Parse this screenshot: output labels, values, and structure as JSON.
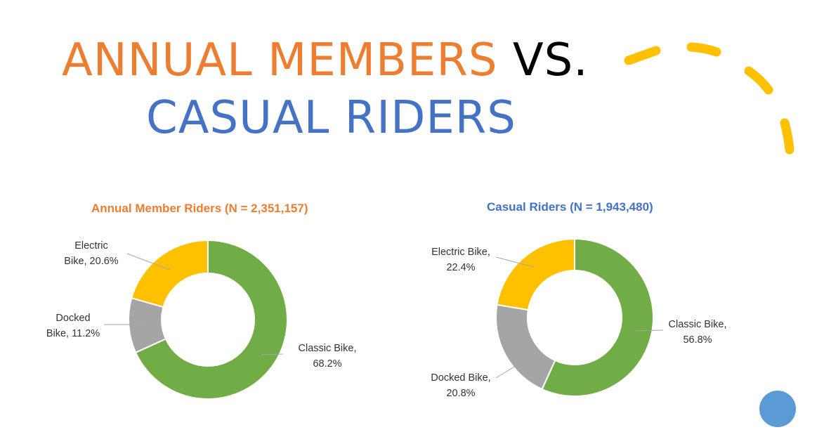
{
  "slide": {
    "title_line1_orange": "ANNUAL MEMBERS",
    "title_line1_black": "VS.",
    "title_line2": "CASUAL RIDERS",
    "colors": {
      "orange": "#ED7D31",
      "blue": "#4472C4",
      "black": "#000000",
      "accent_yellow": "#FFC000",
      "dot_blue": "#5B9BD5"
    }
  },
  "chart_data": [
    {
      "type": "pie",
      "title": "Annual Member Riders (N = 2,351,157)",
      "title_color": "#ED7D31",
      "slices": [
        {
          "name": "Classic Bike",
          "value": 68.2,
          "label": [
            "Classic Bike,",
            "68.2%"
          ],
          "color": "#70AD47"
        },
        {
          "name": "Docked Bike",
          "value": 11.2,
          "label": [
            "Docked",
            "Bike, 11.2%"
          ],
          "color": "#A5A5A5"
        },
        {
          "name": "Electric Bike",
          "value": 20.6,
          "label": [
            "Electric",
            "Bike, 20.6%"
          ],
          "color": "#FFC000"
        }
      ]
    },
    {
      "type": "pie",
      "title": "Casual Riders (N = 1,943,480)",
      "title_color": "#4472C4",
      "slices": [
        {
          "name": "Classic Bike",
          "value": 56.8,
          "label": [
            "Classic Bike,",
            "56.8%"
          ],
          "color": "#70AD47"
        },
        {
          "name": "Docked Bike",
          "value": 20.8,
          "label": [
            "Docked Bike,",
            "20.8%"
          ],
          "color": "#A5A5A5"
        },
        {
          "name": "Electric Bike",
          "value": 22.4,
          "label": [
            "Electric Bike,",
            "22.4%"
          ],
          "color": "#FFC000"
        }
      ]
    }
  ]
}
